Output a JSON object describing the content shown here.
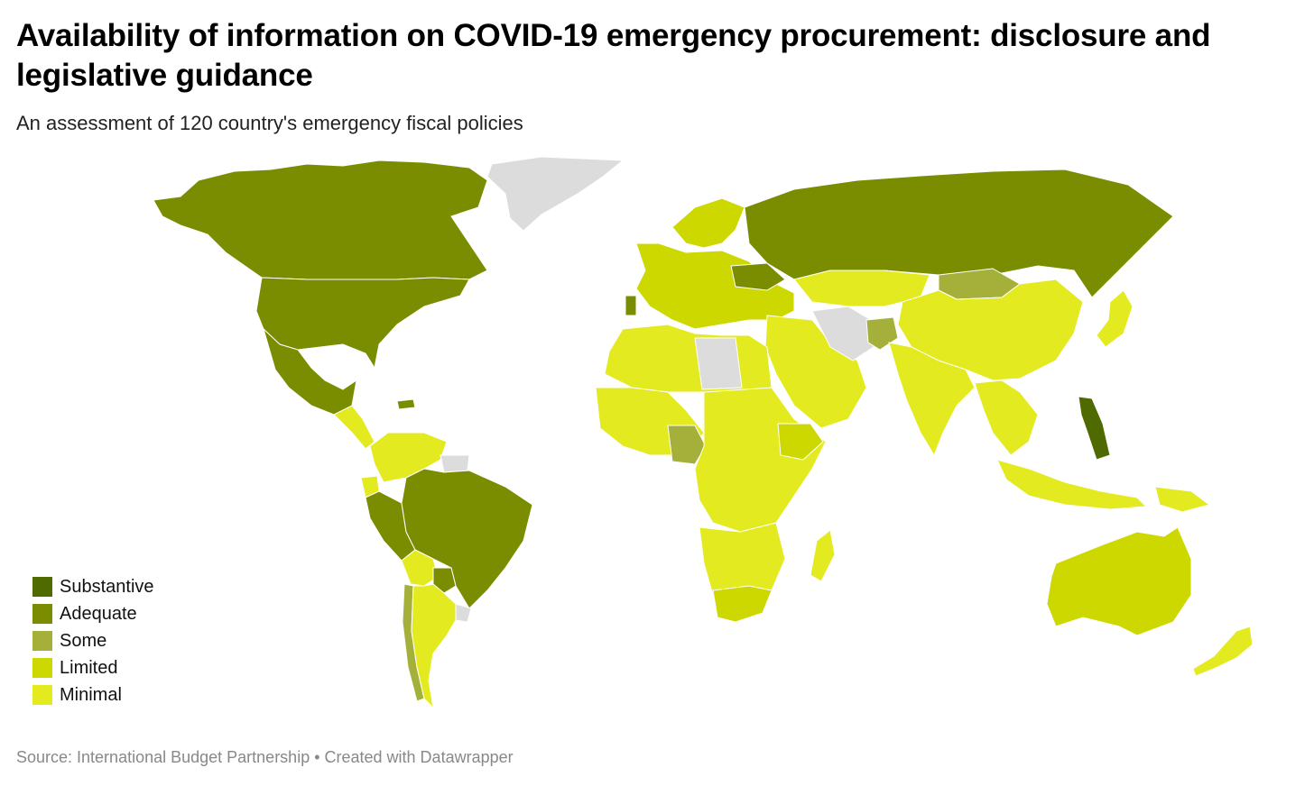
{
  "title": "Availability of information on COVID-19 emergency procurement: disclosure and legislative guidance",
  "subtitle": "An assessment of 120 country's emergency fiscal policies",
  "source": "Source: International Budget Partnership • Created with Datawrapper",
  "colors": {
    "substantive": "#4f6a00",
    "adequate": "#7a8d00",
    "some": "#a4b03a",
    "limited": "#cdd800",
    "minimal": "#e3ea20",
    "no_data": "#dcdcdc",
    "border": "#ffffff"
  },
  "legend": [
    {
      "label": "Substantive",
      "category": "substantive"
    },
    {
      "label": "Adequate",
      "category": "adequate"
    },
    {
      "label": "Some",
      "category": "some"
    },
    {
      "label": "Limited",
      "category": "limited"
    },
    {
      "label": "Minimal",
      "category": "minimal"
    }
  ],
  "regions": [
    {
      "name": "Greenland",
      "category": "no_data"
    },
    {
      "name": "Canada",
      "category": "adequate"
    },
    {
      "name": "United States",
      "category": "adequate"
    },
    {
      "name": "Mexico",
      "category": "adequate"
    },
    {
      "name": "Central America",
      "category": "minimal"
    },
    {
      "name": "Dominican Republic",
      "category": "adequate"
    },
    {
      "name": "Colombia & Venezuela",
      "category": "minimal"
    },
    {
      "name": "Ecuador",
      "category": "minimal"
    },
    {
      "name": "Peru",
      "category": "adequate"
    },
    {
      "name": "Brazil",
      "category": "adequate"
    },
    {
      "name": "Bolivia",
      "category": "minimal"
    },
    {
      "name": "Paraguay",
      "category": "adequate"
    },
    {
      "name": "Chile",
      "category": "some"
    },
    {
      "name": "Argentina",
      "category": "minimal"
    },
    {
      "name": "Uruguay",
      "category": "no_data"
    },
    {
      "name": "Guianas",
      "category": "no_data"
    },
    {
      "name": "Russia",
      "category": "adequate"
    },
    {
      "name": "Europe",
      "category": "limited"
    },
    {
      "name": "Portugal",
      "category": "adequate"
    },
    {
      "name": "Ukraine",
      "category": "adequate"
    },
    {
      "name": "Scandinavia",
      "category": "limited"
    },
    {
      "name": "North Africa",
      "category": "minimal"
    },
    {
      "name": "Libya",
      "category": "no_data"
    },
    {
      "name": "West Africa",
      "category": "minimal"
    },
    {
      "name": "Nigeria",
      "category": "some"
    },
    {
      "name": "Central & East Africa",
      "category": "minimal"
    },
    {
      "name": "Ethiopia",
      "category": "limited"
    },
    {
      "name": "Southern Africa",
      "category": "minimal"
    },
    {
      "name": "South Africa",
      "category": "limited"
    },
    {
      "name": "Madagascar",
      "category": "minimal"
    },
    {
      "name": "Middle East",
      "category": "minimal"
    },
    {
      "name": "Iran",
      "category": "no_data"
    },
    {
      "name": "Kazakhstan",
      "category": "minimal"
    },
    {
      "name": "Afghanistan",
      "category": "some"
    },
    {
      "name": "Mongolia",
      "category": "some"
    },
    {
      "name": "China",
      "category": "minimal"
    },
    {
      "name": "India",
      "category": "minimal"
    },
    {
      "name": "Southeast Asia",
      "category": "minimal"
    },
    {
      "name": "Philippines",
      "category": "substantive"
    },
    {
      "name": "Indonesia",
      "category": "minimal"
    },
    {
      "name": "Papua New Guinea",
      "category": "minimal"
    },
    {
      "name": "Japan",
      "category": "minimal"
    },
    {
      "name": "Australia",
      "category": "limited"
    },
    {
      "name": "New Zealand",
      "category": "minimal"
    }
  ]
}
